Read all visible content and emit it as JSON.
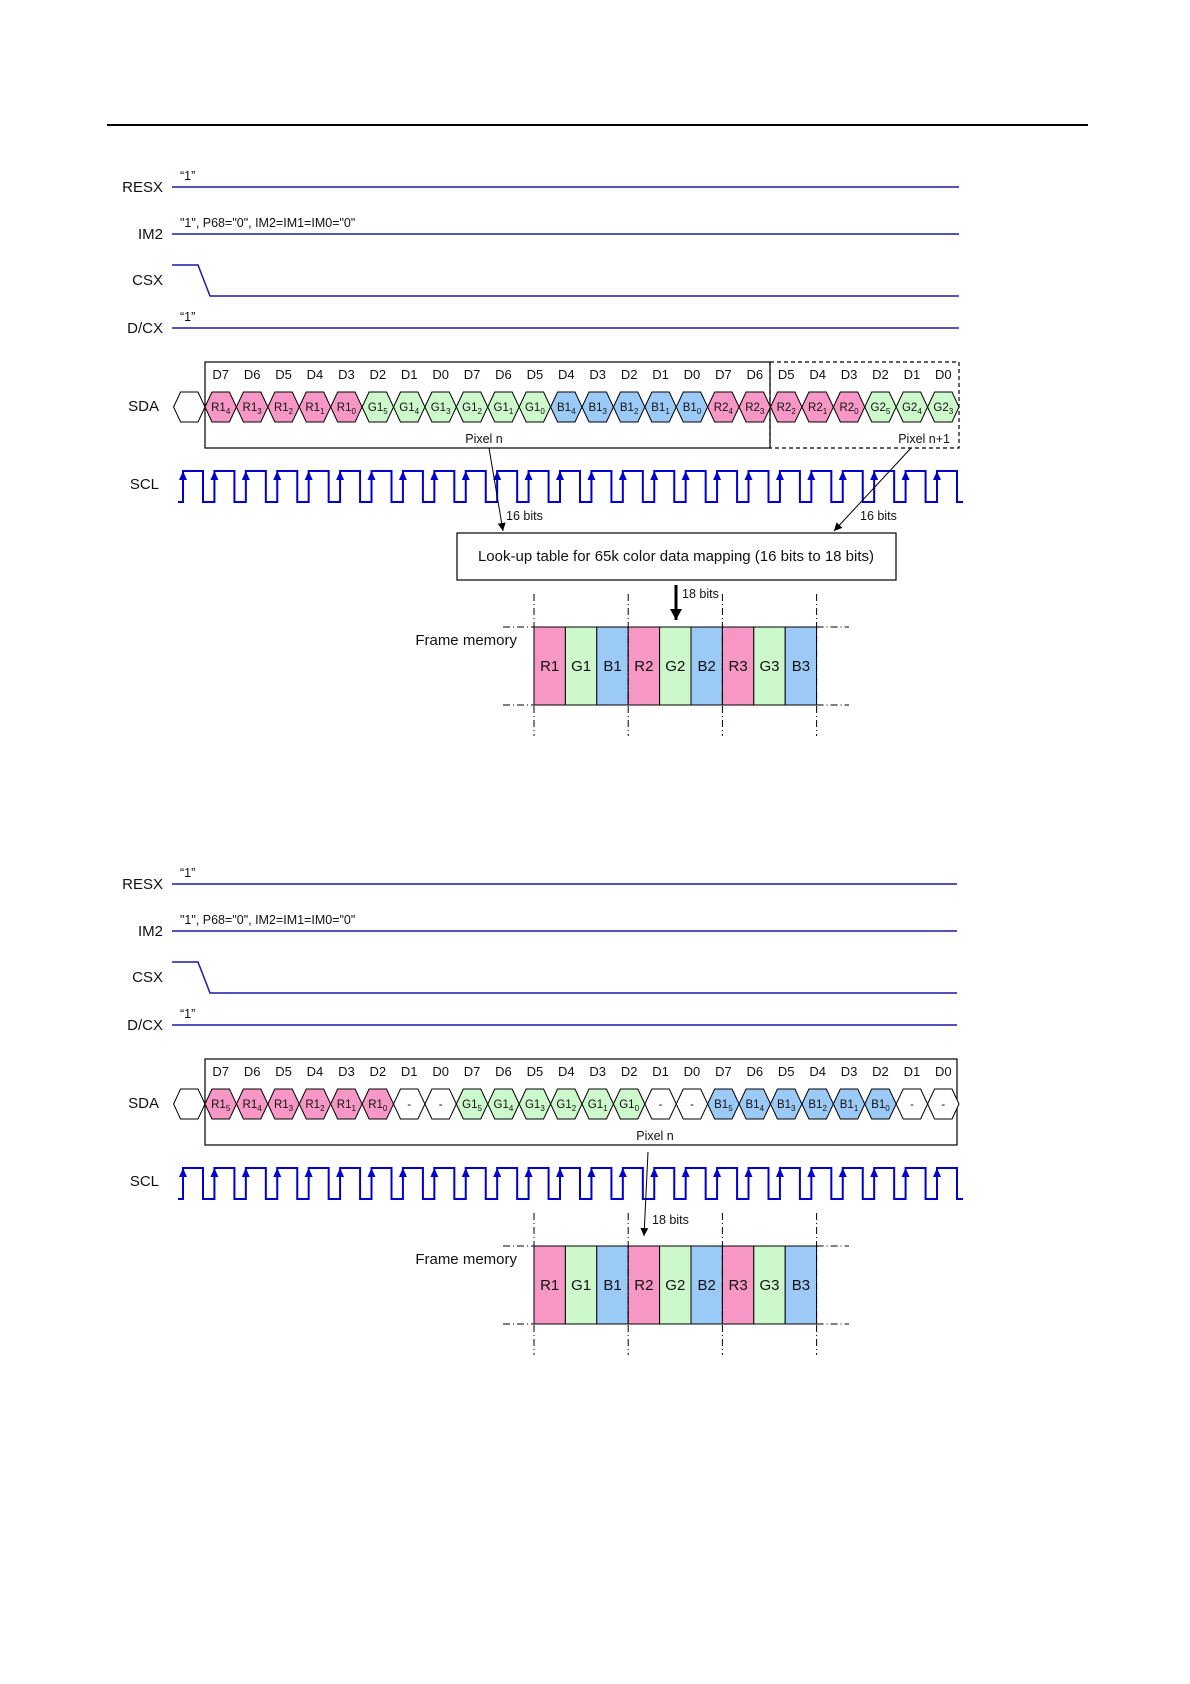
{
  "colors": {
    "red": "#f797c6",
    "green": "#ccf8cc",
    "blue": "#9ccaf7",
    "none": "#ffffff",
    "signal": "#1a1aa6",
    "scl": "#0000d0"
  },
  "diagrams": [
    {
      "signals": {
        "resx": {
          "label": "RESX",
          "note": "“1”"
        },
        "im2": {
          "label": "IM2",
          "note": "\"1\", P68=\"0\", IM2=IM1=IM0=\"0\""
        },
        "csx": {
          "label": "CSX"
        },
        "dcx": {
          "label": "D/CX",
          "note": "“1”"
        },
        "sda": {
          "label": "SDA"
        },
        "scl": {
          "label": "SCL"
        }
      },
      "bits": [
        "D7",
        "D6",
        "D5",
        "D4",
        "D3",
        "D2",
        "D1",
        "D0",
        "D7",
        "D6",
        "D5",
        "D4",
        "D3",
        "D2",
        "D1",
        "D0",
        "D7",
        "D6",
        "D5",
        "D4",
        "D3",
        "D2",
        "D1",
        "D0"
      ],
      "cells": [
        {
          "t": "R1",
          "s": "4",
          "c": "red"
        },
        {
          "t": "R1",
          "s": "3",
          "c": "red"
        },
        {
          "t": "R1",
          "s": "2",
          "c": "red"
        },
        {
          "t": "R1",
          "s": "1",
          "c": "red"
        },
        {
          "t": "R1",
          "s": "0",
          "c": "red"
        },
        {
          "t": "G1",
          "s": "5",
          "c": "green"
        },
        {
          "t": "G1",
          "s": "4",
          "c": "green"
        },
        {
          "t": "G1",
          "s": "3",
          "c": "green"
        },
        {
          "t": "G1",
          "s": "2",
          "c": "green"
        },
        {
          "t": "G1",
          "s": "1",
          "c": "green"
        },
        {
          "t": "G1",
          "s": "0",
          "c": "green"
        },
        {
          "t": "B1",
          "s": "4",
          "c": "blue"
        },
        {
          "t": "B1",
          "s": "3",
          "c": "blue"
        },
        {
          "t": "B1",
          "s": "2",
          "c": "blue"
        },
        {
          "t": "B1",
          "s": "1",
          "c": "blue"
        },
        {
          "t": "B1",
          "s": "0",
          "c": "blue"
        },
        {
          "t": "R2",
          "s": "4",
          "c": "red"
        },
        {
          "t": "R2",
          "s": "3",
          "c": "red"
        },
        {
          "t": "R2",
          "s": "2",
          "c": "red"
        },
        {
          "t": "R2",
          "s": "1",
          "c": "red"
        },
        {
          "t": "R2",
          "s": "0",
          "c": "red"
        },
        {
          "t": "G2",
          "s": "5",
          "c": "green"
        },
        {
          "t": "G2",
          "s": "4",
          "c": "green"
        },
        {
          "t": "G2",
          "s": "3",
          "c": "green"
        }
      ],
      "pixel_labels": [
        "Pixel n",
        "Pixel n+1"
      ],
      "bits_in_labels": [
        "16 bits",
        "16 bits"
      ],
      "lut_label": "Look-up table for 65k color data mapping (16 bits to 18 bits)",
      "bits_out_label": "18 bits",
      "frame_label": "Frame memory",
      "frame_cells": [
        {
          "t": "R1",
          "c": "red"
        },
        {
          "t": "G1",
          "c": "green"
        },
        {
          "t": "B1",
          "c": "blue"
        },
        {
          "t": "R2",
          "c": "red"
        },
        {
          "t": "G2",
          "c": "green"
        },
        {
          "t": "B2",
          "c": "blue"
        },
        {
          "t": "R3",
          "c": "red"
        },
        {
          "t": "G3",
          "c": "green"
        },
        {
          "t": "B3",
          "c": "blue"
        }
      ]
    },
    {
      "signals": {
        "resx": {
          "label": "RESX",
          "note": "“1”"
        },
        "im2": {
          "label": "IM2",
          "note": "\"1\", P68=\"0\", IM2=IM1=IM0=\"0\""
        },
        "csx": {
          "label": "CSX"
        },
        "dcx": {
          "label": "D/CX",
          "note": "“1”"
        },
        "sda": {
          "label": "SDA"
        },
        "scl": {
          "label": "SCL"
        }
      },
      "bits": [
        "D7",
        "D6",
        "D5",
        "D4",
        "D3",
        "D2",
        "D1",
        "D0",
        "D7",
        "D6",
        "D5",
        "D4",
        "D3",
        "D2",
        "D1",
        "D0",
        "D7",
        "D6",
        "D5",
        "D4",
        "D3",
        "D2",
        "D1",
        "D0"
      ],
      "cells": [
        {
          "t": "R1",
          "s": "5",
          "c": "red"
        },
        {
          "t": "R1",
          "s": "4",
          "c": "red"
        },
        {
          "t": "R1",
          "s": "3",
          "c": "red"
        },
        {
          "t": "R1",
          "s": "2",
          "c": "red"
        },
        {
          "t": "R1",
          "s": "1",
          "c": "red"
        },
        {
          "t": "R1",
          "s": "0",
          "c": "red"
        },
        {
          "t": "-",
          "s": "",
          "c": "none"
        },
        {
          "t": "-",
          "s": "",
          "c": "none"
        },
        {
          "t": "G1",
          "s": "5",
          "c": "green"
        },
        {
          "t": "G1",
          "s": "4",
          "c": "green"
        },
        {
          "t": "G1",
          "s": "3",
          "c": "green"
        },
        {
          "t": "G1",
          "s": "2",
          "c": "green"
        },
        {
          "t": "G1",
          "s": "1",
          "c": "green"
        },
        {
          "t": "G1",
          "s": "0",
          "c": "green"
        },
        {
          "t": "-",
          "s": "",
          "c": "none"
        },
        {
          "t": "-",
          "s": "",
          "c": "none"
        },
        {
          "t": "B1",
          "s": "5",
          "c": "blue"
        },
        {
          "t": "B1",
          "s": "4",
          "c": "blue"
        },
        {
          "t": "B1",
          "s": "3",
          "c": "blue"
        },
        {
          "t": "B1",
          "s": "2",
          "c": "blue"
        },
        {
          "t": "B1",
          "s": "1",
          "c": "blue"
        },
        {
          "t": "B1",
          "s": "0",
          "c": "blue"
        },
        {
          "t": "-",
          "s": "",
          "c": "none"
        },
        {
          "t": "-",
          "s": "",
          "c": "none"
        }
      ],
      "pixel_labels": [
        "Pixel n"
      ],
      "bits_out_label": "18 bits",
      "frame_label": "Frame memory",
      "frame_cells": [
        {
          "t": "R1",
          "c": "red"
        },
        {
          "t": "G1",
          "c": "green"
        },
        {
          "t": "B1",
          "c": "blue"
        },
        {
          "t": "R2",
          "c": "red"
        },
        {
          "t": "G2",
          "c": "green"
        },
        {
          "t": "B2",
          "c": "blue"
        },
        {
          "t": "R3",
          "c": "red"
        },
        {
          "t": "G3",
          "c": "green"
        },
        {
          "t": "B3",
          "c": "blue"
        }
      ]
    }
  ]
}
